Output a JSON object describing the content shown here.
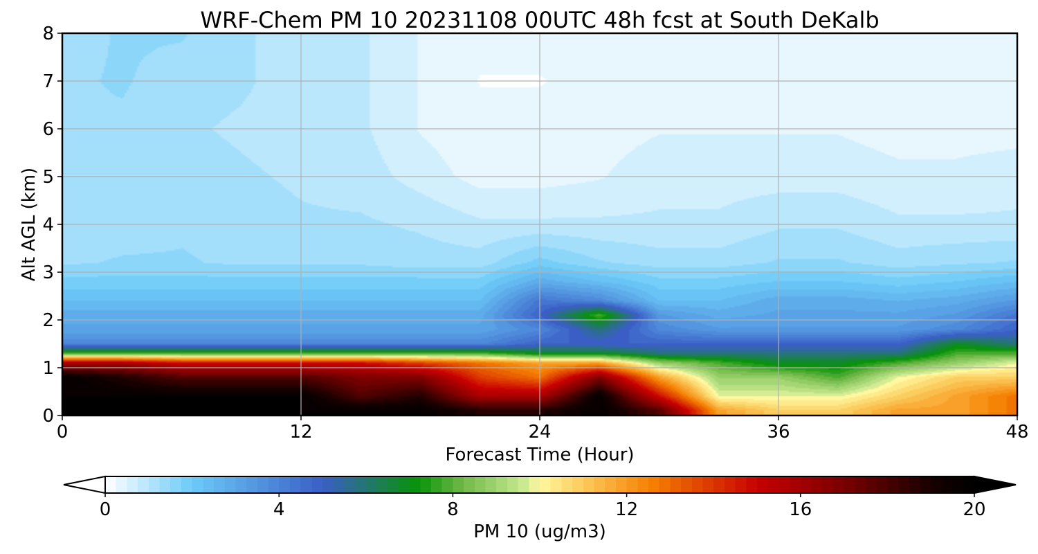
{
  "chart_data": {
    "type": "heatmap",
    "title": "WRF-Chem PM 10  20231108 00UTC 48h fcst at South DeKalb",
    "xlabel": "Forecast Time (Hour)",
    "ylabel": "Alt AGL (km)",
    "xlim": [
      0,
      48
    ],
    "ylim": [
      0,
      8
    ],
    "xticks": [
      0,
      12,
      24,
      36,
      48
    ],
    "yticks": [
      0,
      1,
      2,
      3,
      4,
      5,
      6,
      7,
      8
    ],
    "grid": true,
    "x_hours": [
      0,
      3,
      6,
      9,
      12,
      15,
      18,
      21,
      24,
      27,
      30,
      33,
      36,
      39,
      42,
      45,
      48
    ],
    "y_km": [
      0.1,
      0.4,
      0.8,
      1.1,
      1.3,
      1.5,
      1.8,
      2.1,
      2.4,
      2.8,
      3.2,
      4.0,
      5.0,
      6.0,
      7.0,
      8.0
    ],
    "values_ugm3": [
      [
        20,
        20,
        20,
        20,
        20,
        20,
        20,
        19,
        19,
        20,
        18,
        12,
        11,
        11,
        12,
        12,
        13
      ],
      [
        20,
        20,
        20,
        20,
        20,
        18,
        19,
        16,
        16,
        20,
        15,
        10,
        10,
        10,
        11,
        12,
        13
      ],
      [
        20,
        19,
        18,
        18,
        18,
        17,
        17,
        14,
        13,
        17,
        12,
        9,
        9,
        8,
        10,
        11,
        11
      ],
      [
        16,
        16,
        15,
        15,
        15,
        15,
        14,
        13,
        12,
        12,
        9,
        8,
        7,
        7,
        8,
        9,
        10
      ],
      [
        8,
        8,
        8,
        8,
        8,
        8,
        8,
        8,
        7,
        7,
        6,
        6,
        6,
        6,
        6,
        8,
        8
      ],
      [
        4,
        4,
        4,
        4,
        4,
        4,
        4,
        4,
        5,
        5,
        5,
        5,
        5,
        5,
        5,
        7,
        6
      ],
      [
        3.2,
        3.2,
        3.2,
        3.2,
        3.2,
        3.2,
        3.2,
        3.2,
        4,
        6,
        4,
        3.5,
        3.5,
        3.5,
        3.5,
        4,
        5
      ],
      [
        3,
        3,
        3,
        3,
        3,
        3,
        3,
        3,
        5,
        8,
        3.5,
        3,
        3.2,
        3.2,
        3.2,
        3.5,
        4.5
      ],
      [
        2.5,
        2.5,
        2.5,
        2.5,
        2.5,
        2.5,
        2.5,
        2.5,
        4.5,
        4,
        2.5,
        2.5,
        3,
        3,
        2.8,
        3,
        3.5
      ],
      [
        2,
        2,
        2,
        2,
        2,
        2,
        2,
        2,
        3,
        2.5,
        2,
        2,
        2.2,
        2.2,
        2,
        2.2,
        2.5
      ],
      [
        1.5,
        1.6,
        1.6,
        1.5,
        1.5,
        1.5,
        1.4,
        1.4,
        2,
        1.6,
        1.4,
        1.4,
        1.6,
        1.6,
        1.4,
        1.5,
        1.6
      ],
      [
        1.3,
        1.4,
        1.5,
        1.4,
        1.3,
        1.3,
        1.2,
        1,
        1,
        1,
        1,
        1,
        1.2,
        1.2,
        1,
        1,
        1
      ],
      [
        1.4,
        1.4,
        1.4,
        1.3,
        1.2,
        1.1,
        0.8,
        0.5,
        0.5,
        0.6,
        0.8,
        0.8,
        0.8,
        0.8,
        0.7,
        0.7,
        0.8
      ],
      [
        1.5,
        1.5,
        1.3,
        1.2,
        1.1,
        1,
        0.6,
        0.4,
        0.4,
        0.5,
        0.6,
        0.6,
        0.6,
        0.6,
        0.5,
        0.5,
        0.5
      ],
      [
        1.5,
        1.6,
        1.4,
        1.3,
        1.1,
        1,
        0.6,
        0.3,
        0.3,
        0.4,
        0.5,
        0.5,
        0.5,
        0.5,
        0.5,
        0.4,
        0.4
      ],
      [
        1.4,
        1.6,
        1.6,
        1.3,
        1.1,
        1,
        0.6,
        0.4,
        0.4,
        0.4,
        0.5,
        0.5,
        0.5,
        0.5,
        0.5,
        0.5,
        0.4
      ]
    ],
    "colorbar": {
      "label": "PM 10  (ug/m3)",
      "min": 0,
      "max": 20,
      "ticks": [
        0,
        4,
        8,
        12,
        16,
        20
      ],
      "extend": "both",
      "palette": [
        {
          "v": 0,
          "c": "#ffffff"
        },
        {
          "v": 2,
          "c": "#6ccbf8"
        },
        {
          "v": 5,
          "c": "#3a5ec6"
        },
        {
          "v": 7.2,
          "c": "#089308"
        },
        {
          "v": 8.2,
          "c": "#6eb846"
        },
        {
          "v": 9.6,
          "c": "#c8e890"
        },
        {
          "v": 10,
          "c": "#fff8a0"
        },
        {
          "v": 11,
          "c": "#fbca5a"
        },
        {
          "v": 12.6,
          "c": "#f57e00"
        },
        {
          "v": 15,
          "c": "#c80000"
        },
        {
          "v": 17,
          "c": "#7a0000"
        },
        {
          "v": 19,
          "c": "#180000"
        },
        {
          "v": 20,
          "c": "#000000"
        }
      ]
    }
  }
}
